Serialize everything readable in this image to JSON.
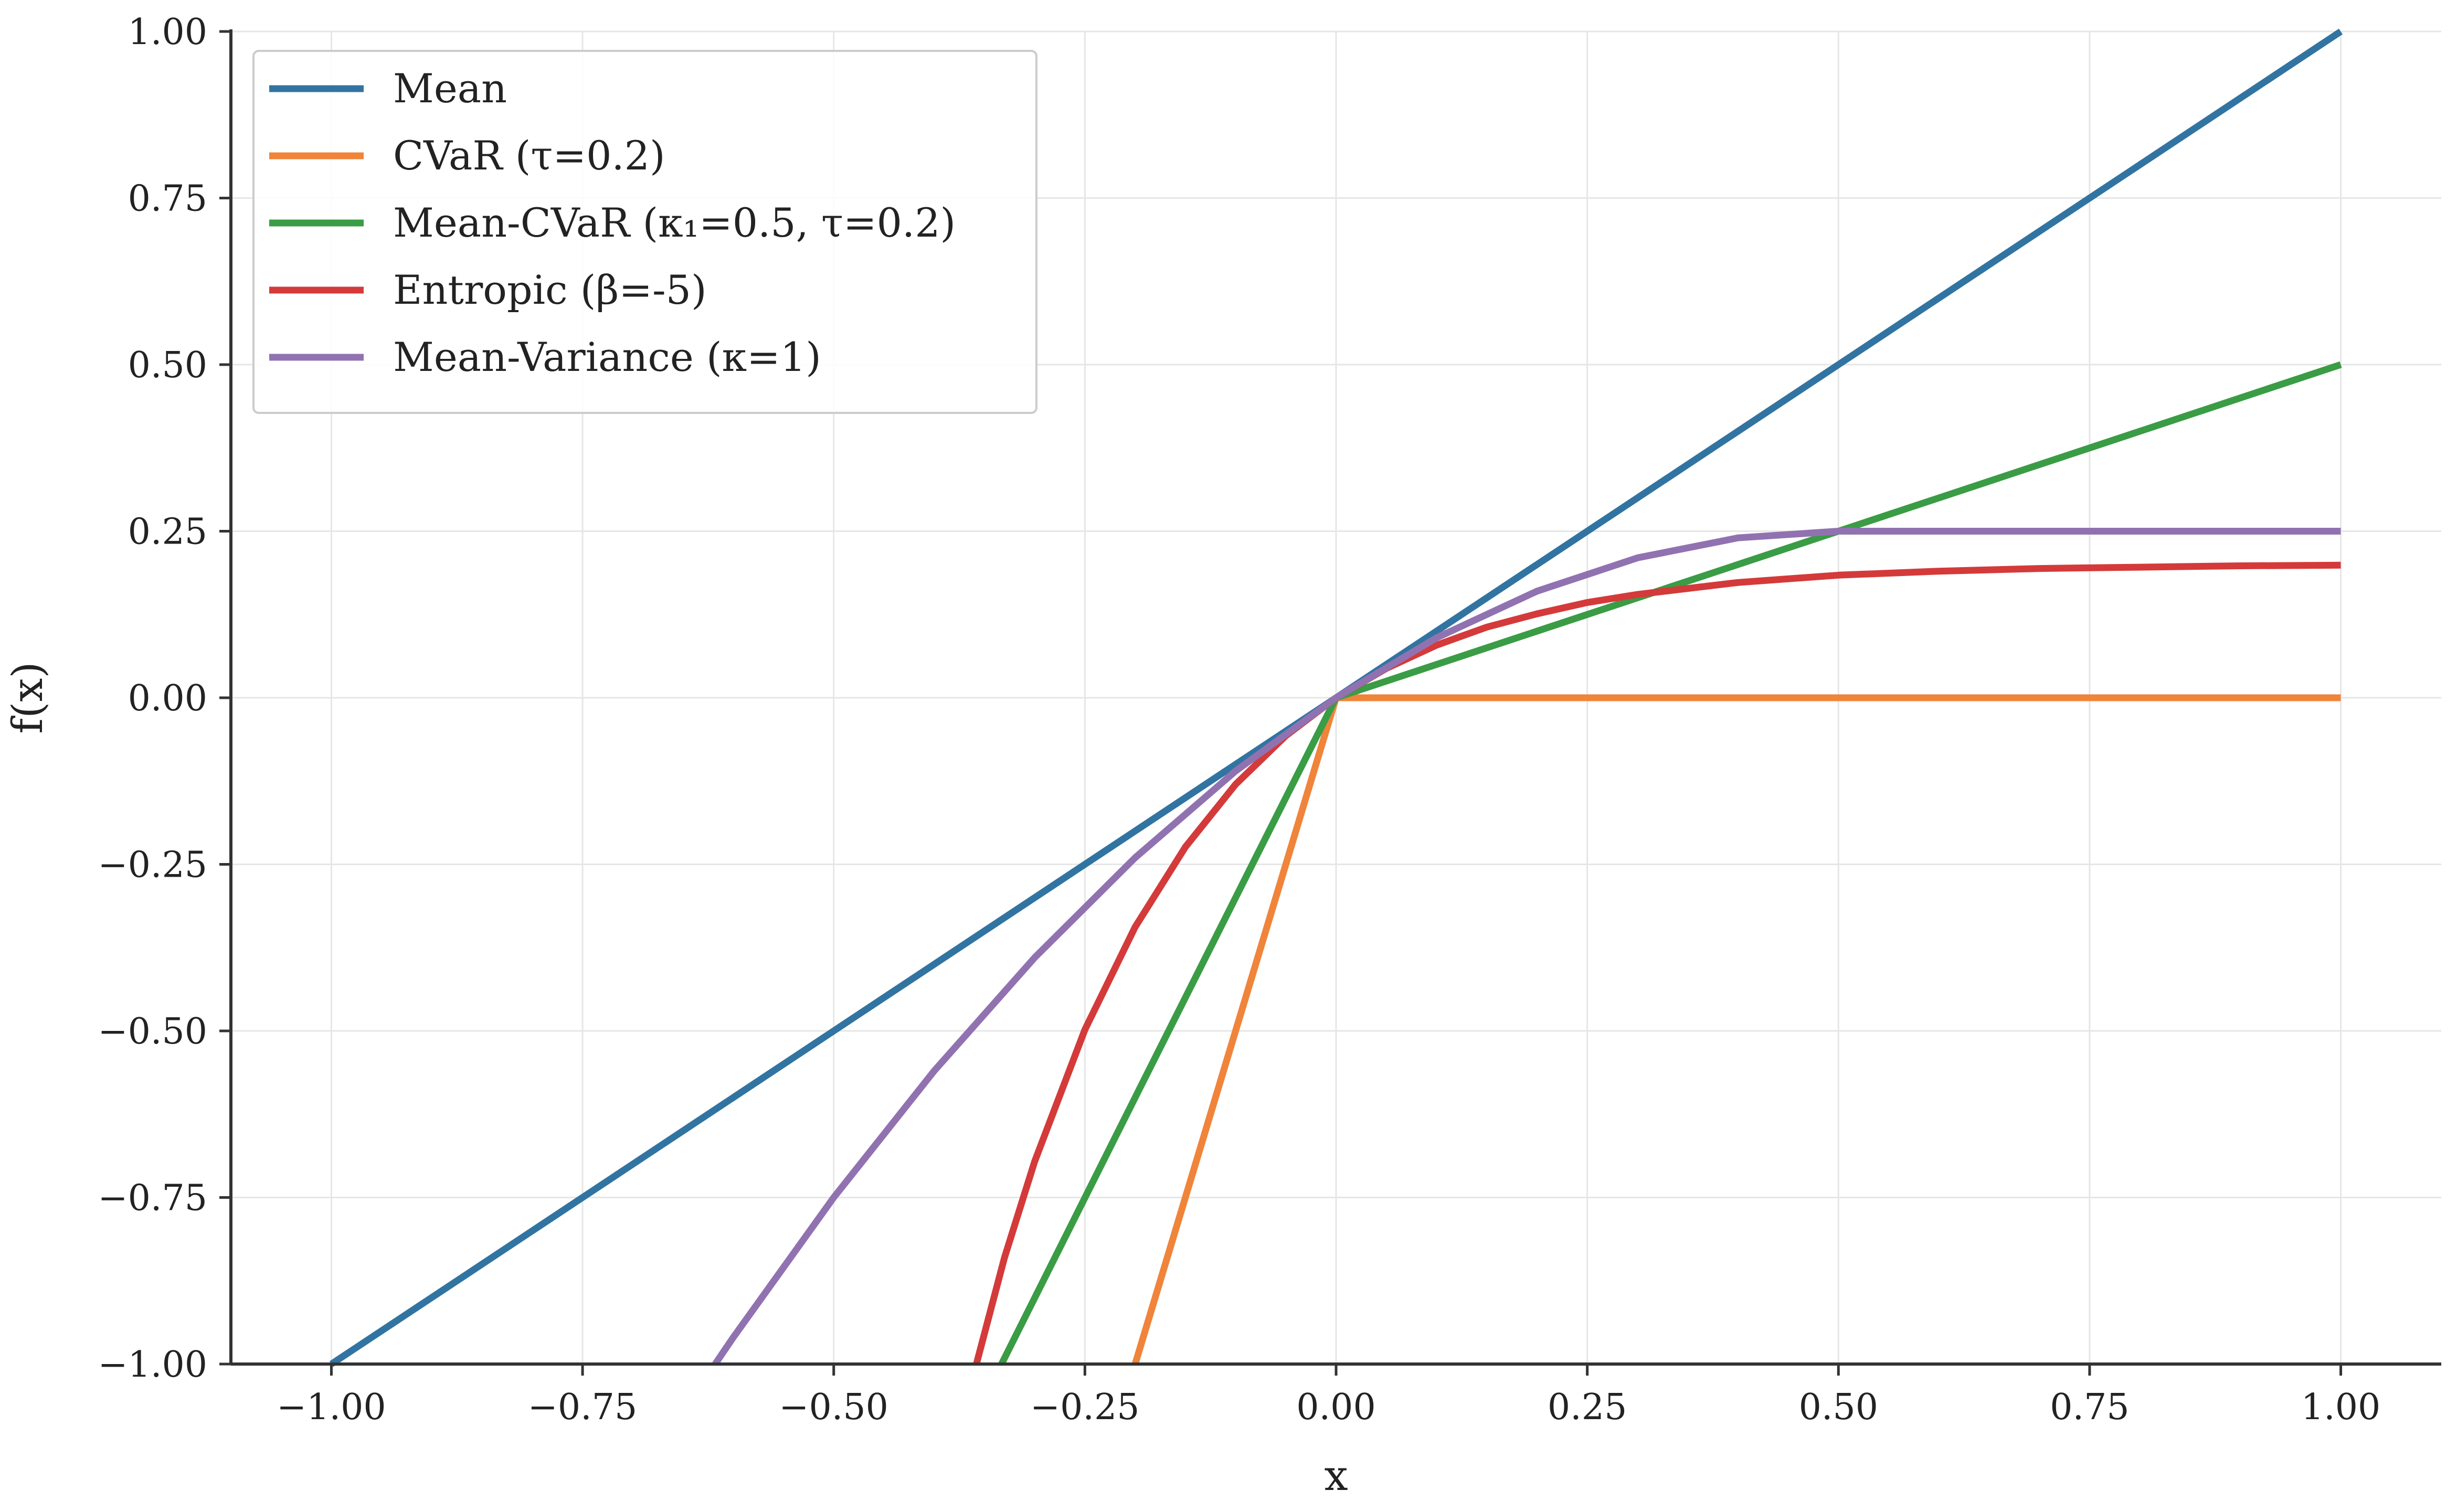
{
  "chart_data": {
    "type": "line",
    "title": "",
    "xlabel": "x",
    "ylabel": "f(x)",
    "xlim": [
      -1.1,
      1.1
    ],
    "ylim": [
      -1.0,
      1.0
    ],
    "xticks": [
      -1.0,
      -0.75,
      -0.5,
      -0.25,
      0.0,
      0.25,
      0.5,
      0.75,
      1.0
    ],
    "xtick_labels": [
      "−1.00",
      "−0.75",
      "−0.50",
      "−0.25",
      "0.00",
      "0.25",
      "0.50",
      "0.75",
      "1.00"
    ],
    "yticks": [
      -1.0,
      -0.75,
      -0.5,
      -0.25,
      0.0,
      0.25,
      0.5,
      0.75,
      1.0
    ],
    "ytick_labels": [
      "−1.00",
      "−0.75",
      "−0.50",
      "−0.25",
      "0.00",
      "0.25",
      "0.50",
      "0.75",
      "1.00"
    ],
    "grid": true,
    "legend_position": "top-left",
    "series": [
      {
        "name": "Mean",
        "color": "#3274a1",
        "x": [
          -1.0,
          -0.5,
          0.0,
          0.5,
          1.0
        ],
        "y": [
          -1.0,
          -0.5,
          0.0,
          0.5,
          1.0
        ]
      },
      {
        "name": "CVaR (τ=0.2)",
        "color": "#f0843a",
        "x": [
          -0.2,
          -0.1,
          0.0,
          0.5,
          1.0
        ],
        "y": [
          -1.0,
          -0.5,
          0.0,
          0.0,
          0.0
        ]
      },
      {
        "name": "Mean-CVaR (κ₁=0.5, τ=0.2)",
        "color": "#3a9c45",
        "x": [
          -0.333,
          -0.2,
          -0.1,
          0.0,
          0.25,
          0.5,
          0.75,
          1.0
        ],
        "y": [
          -1.0,
          -0.6,
          -0.3,
          0.0,
          0.125,
          0.25,
          0.375,
          0.5
        ]
      },
      {
        "name": "Entropic (β=-5)",
        "color": "#d43a3a",
        "x": [
          -0.358,
          -0.33,
          -0.3,
          -0.25,
          -0.2,
          -0.15,
          -0.1,
          -0.05,
          0.0,
          0.05,
          0.1,
          0.15,
          0.2,
          0.25,
          0.3,
          0.4,
          0.5,
          0.6,
          0.7,
          0.8,
          0.9,
          1.0
        ],
        "y": [
          -1.0,
          -0.84,
          -0.696,
          -0.498,
          -0.344,
          -0.224,
          -0.13,
          -0.057,
          0.0,
          0.044,
          0.079,
          0.106,
          0.126,
          0.143,
          0.155,
          0.173,
          0.184,
          0.19,
          0.194,
          0.196,
          0.198,
          0.199
        ]
      },
      {
        "name": "Mean-Variance (κ=1)",
        "color": "#9172b1",
        "x": [
          -0.618,
          -0.6,
          -0.5,
          -0.4,
          -0.3,
          -0.2,
          -0.1,
          0.0,
          0.1,
          0.2,
          0.3,
          0.4,
          0.5,
          0.6,
          0.7,
          0.8,
          0.9,
          1.0
        ],
        "y": [
          -1.0,
          -0.96,
          -0.75,
          -0.56,
          -0.39,
          -0.24,
          -0.11,
          0.0,
          0.09,
          0.16,
          0.21,
          0.24,
          0.25,
          0.25,
          0.25,
          0.25,
          0.25,
          0.25
        ]
      }
    ]
  }
}
